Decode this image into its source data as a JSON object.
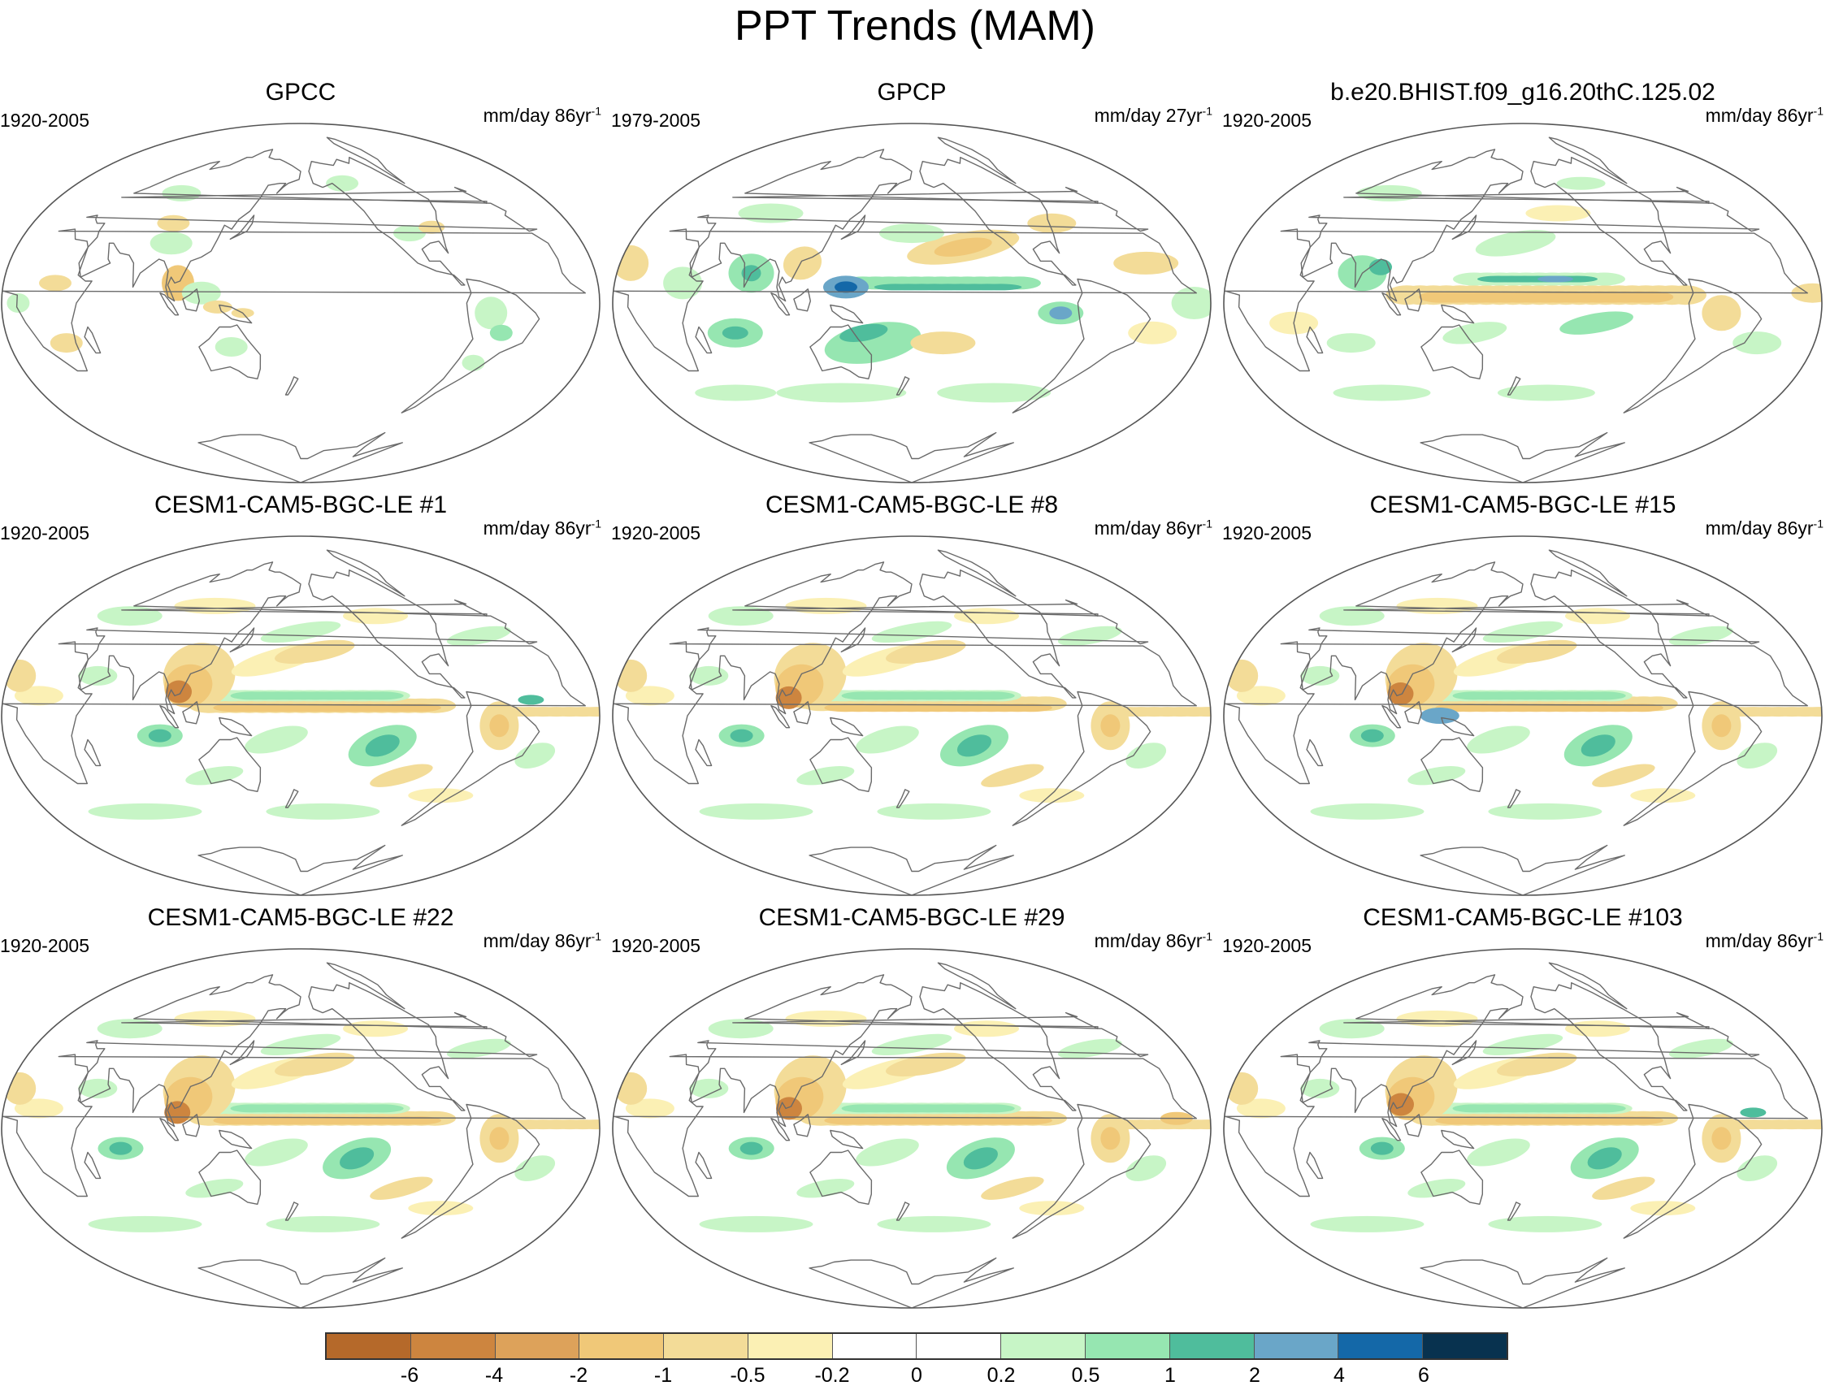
{
  "title": "PPT Trends (MAM)",
  "panels": [
    {
      "title": "GPCC",
      "period": "1920-2005",
      "units": "mm/day 86yr",
      "units_exp": "-1",
      "style": "sparse"
    },
    {
      "title": "GPCP",
      "period": "1979-2005",
      "units": "mm/day 27yr",
      "units_exp": "-1",
      "style": "obs2"
    },
    {
      "title": "b.e20.BHIST.f09_g16.20thC.125.02",
      "period": "1920-2005",
      "units": "mm/day 86yr",
      "units_exp": "-1",
      "style": "model"
    },
    {
      "title": "CESM1-CAM5-BGC-LE #1",
      "period": "1920-2005",
      "units": "mm/day 86yr",
      "units_exp": "-1",
      "style": "le"
    },
    {
      "title": "CESM1-CAM5-BGC-LE #8",
      "period": "1920-2005",
      "units": "mm/day 86yr",
      "units_exp": "-1",
      "style": "le"
    },
    {
      "title": "CESM1-CAM5-BGC-LE #15",
      "period": "1920-2005",
      "units": "mm/day 86yr",
      "units_exp": "-1",
      "style": "le"
    },
    {
      "title": "CESM1-CAM5-BGC-LE #22",
      "period": "1920-2005",
      "units": "mm/day 86yr",
      "units_exp": "-1",
      "style": "le"
    },
    {
      "title": "CESM1-CAM5-BGC-LE #29",
      "period": "1920-2005",
      "units": "mm/day 86yr",
      "units_exp": "-1",
      "style": "le"
    },
    {
      "title": "CESM1-CAM5-BGC-LE #103",
      "period": "1920-2005",
      "units": "mm/day 86yr",
      "units_exp": "-1",
      "style": "le"
    }
  ],
  "colorbar": {
    "colors": [
      "#b5692a",
      "#cd853f",
      "#dda25a",
      "#f0c878",
      "#f3dc98",
      "#fbf0b4",
      "#ffffff",
      "#ffffff",
      "#c7f5c6",
      "#96e6b1",
      "#4fbd9c",
      "#6aa6c8",
      "#1468a8",
      "#08324f"
    ],
    "labels": [
      "-6",
      "-4",
      "-2",
      "-1",
      "-0.5",
      "-0.2",
      "0",
      "0.2",
      "0.5",
      "1",
      "2",
      "4",
      "6"
    ]
  },
  "colors": {
    "ocean": "#ffffff",
    "border": "#555555",
    "coast": "#6a6a6a"
  }
}
